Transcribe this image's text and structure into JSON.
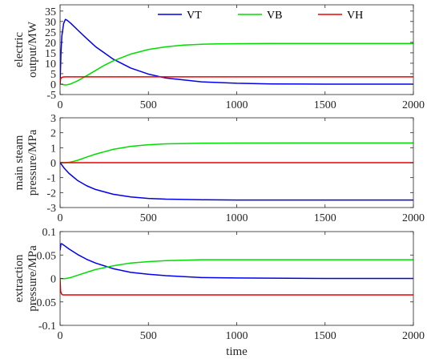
{
  "chart_data": [
    {
      "type": "line",
      "ylabel": [
        "electric",
        "output/MW"
      ],
      "xlim": [
        0,
        2000
      ],
      "ylim": [
        -5,
        38
      ],
      "xticks": [
        0,
        500,
        1000,
        1500,
        2000
      ],
      "yticks": [
        -5,
        0,
        5,
        10,
        15,
        20,
        25,
        30,
        35
      ],
      "legend": {
        "placement": "top",
        "entries": [
          "VT",
          "VB",
          "VH"
        ]
      },
      "grid": false,
      "series": [
        {
          "name": "VT",
          "color": "#0000ee",
          "x": [
            0,
            5,
            10,
            20,
            30,
            40,
            60,
            100,
            150,
            200,
            300,
            400,
            500,
            600,
            800,
            1000,
            1200,
            1500,
            2000
          ],
          "y": [
            0,
            15,
            23,
            29,
            31,
            30.6,
            29.2,
            25.9,
            21.9,
            18,
            12,
            7.7,
            4.8,
            2.9,
            1.1,
            0.4,
            0.1,
            0,
            0
          ]
        },
        {
          "name": "VB",
          "color": "#00dd00",
          "x": [
            0,
            10,
            20,
            30,
            40,
            60,
            100,
            150,
            200,
            250,
            300,
            400,
            500,
            600,
            700,
            800,
            900,
            1000,
            1200,
            1500,
            2000
          ],
          "y": [
            0,
            -0.1,
            -0.3,
            -0.4,
            -0.3,
            0.1,
            1.6,
            4,
            6.5,
            9,
            11.1,
            14.4,
            16.6,
            17.9,
            18.7,
            19.1,
            19.3,
            19.4,
            19.5,
            19.5,
            19.5
          ]
        },
        {
          "name": "VH",
          "color": "#ee0000",
          "x": [
            0,
            3,
            8,
            15,
            30,
            100,
            500,
            1000,
            2000
          ],
          "y": [
            0,
            2.5,
            3.1,
            3.4,
            3.5,
            3.5,
            3.5,
            3.5,
            3.5
          ]
        }
      ]
    },
    {
      "type": "line",
      "ylabel": [
        "main steam",
        "pressure/MPa"
      ],
      "xlim": [
        0,
        2000
      ],
      "ylim": [
        -3,
        3
      ],
      "xticks": [
        0,
        500,
        1000,
        1500,
        2000
      ],
      "yticks": [
        -3,
        -2,
        -1,
        0,
        1,
        2,
        3
      ],
      "grid": false,
      "series": [
        {
          "name": "VT",
          "color": "#0000ee",
          "x": [
            0,
            25,
            50,
            100,
            150,
            200,
            300,
            400,
            500,
            600,
            800,
            1000,
            1500,
            2000
          ],
          "y": [
            0,
            -0.39,
            -0.71,
            -1.2,
            -1.54,
            -1.79,
            -2.11,
            -2.29,
            -2.39,
            -2.44,
            -2.48,
            -2.5,
            -2.5,
            -2.5
          ]
        },
        {
          "name": "VB",
          "color": "#00dd00",
          "x": [
            0,
            25,
            50,
            75,
            100,
            150,
            200,
            300,
            400,
            500,
            600,
            800,
            1000,
            1500,
            2000
          ],
          "y": [
            0,
            0,
            0.02,
            0.08,
            0.16,
            0.37,
            0.57,
            0.89,
            1.09,
            1.2,
            1.26,
            1.3,
            1.31,
            1.32,
            1.32
          ]
        },
        {
          "name": "VH",
          "color": "#ee0000",
          "x": [
            0,
            2000
          ],
          "y": [
            0,
            0
          ]
        }
      ]
    },
    {
      "type": "line",
      "ylabel": [
        "extraction",
        "pressure/MPa"
      ],
      "xlabel": "time",
      "xlim": [
        0,
        2000
      ],
      "ylim": [
        -0.1,
        0.1
      ],
      "xticks": [
        0,
        500,
        1000,
        1500,
        2000
      ],
      "yticks": [
        -0.1,
        -0.05,
        0,
        0.05,
        0.1
      ],
      "yticklabels": [
        "-0.1",
        "-0.05",
        "0",
        "0.05",
        "0.1"
      ],
      "grid": false,
      "series": [
        {
          "name": "VT",
          "color": "#0000ee",
          "x": [
            0,
            5,
            10,
            25,
            50,
            100,
            150,
            200,
            300,
            400,
            500,
            600,
            800,
            1000,
            1500,
            2000
          ],
          "y": [
            0.06,
            0.074,
            0.074,
            0.07,
            0.063,
            0.051,
            0.041,
            0.033,
            0.021,
            0.013,
            0.009,
            0.006,
            0.002,
            0.001,
            0,
            0
          ]
        },
        {
          "name": "VB",
          "color": "#00dd00",
          "x": [
            0,
            10,
            25,
            40,
            60,
            100,
            150,
            200,
            300,
            400,
            500,
            600,
            700,
            800,
            1000,
            1200,
            1500,
            2000
          ],
          "y": [
            0,
            -0.0005,
            -0.0005,
            0.0005,
            0.002,
            0.007,
            0.013,
            0.019,
            0.027,
            0.033,
            0.036,
            0.038,
            0.039,
            0.04,
            0.04,
            0.04,
            0.04,
            0.04
          ]
        },
        {
          "name": "VH",
          "color": "#ee0000",
          "x": [
            0,
            3,
            8,
            15,
            30,
            2000
          ],
          "y": [
            0,
            -0.027,
            -0.033,
            -0.035,
            -0.035,
            -0.035
          ]
        }
      ]
    }
  ]
}
